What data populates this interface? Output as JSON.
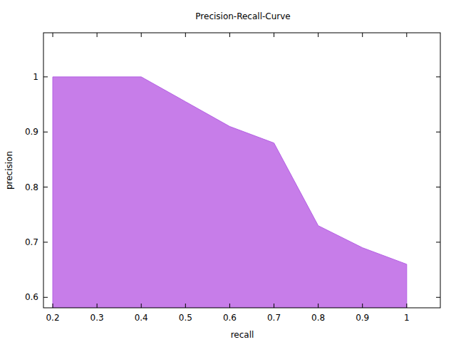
{
  "chart_data": {
    "type": "area",
    "title": "Precision-Recall-Curve",
    "x_label": "recall",
    "y_label": "precision",
    "x": [
      0.2,
      0.3,
      0.4,
      0.5,
      0.6,
      0.7,
      0.8,
      0.9,
      1
    ],
    "values": [
      1,
      1,
      1,
      0.955,
      0.91,
      0.88,
      0.73,
      0.69,
      0.66
    ],
    "color": "#c77de9",
    "xlim": [
      0.179,
      1.076
    ],
    "xticks": [
      0.2,
      0.3,
      0.4,
      0.5,
      0.6,
      0.7,
      0.8,
      0.9,
      1
    ],
    "ylim": [
      0.581,
      1.08
    ],
    "yticks": [
      0.6,
      0.7,
      0.8,
      0.9,
      1
    ],
    "grid": false
  }
}
